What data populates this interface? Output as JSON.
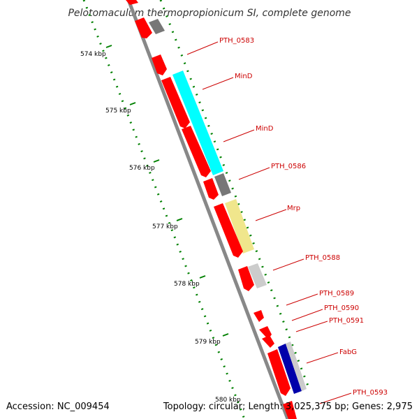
{
  "title": "Pelotomaculum thermopropionicum SI, complete genome",
  "footer": {
    "accession": "Accession: NC_009454",
    "topology": "Topology: circular; Length: 3,025,375 bp; Genes: 2,975"
  },
  "ticks": [
    "574 kbp",
    "575 kbp",
    "576 kbp",
    "577 kbp",
    "578 kbp",
    "579 kbp",
    "580 kbp"
  ],
  "gene_labels": [
    "PTH_0583",
    "MinD",
    "MinD",
    "PTH_0586",
    "Mrp",
    "PTH_0588",
    "PTH_0589",
    "PTH_0590",
    "PTH_0591",
    "FabG",
    "PTH_0593"
  ],
  "colors": {
    "gene_red": "#ff0000",
    "backbone": "#888888",
    "tick_green": "#008000",
    "label_red": "#cc0000",
    "cyan": "#00ffff",
    "gray": "#777777",
    "khaki": "#f0e68c",
    "light_gray": "#cccccc",
    "navy": "#0000aa"
  }
}
